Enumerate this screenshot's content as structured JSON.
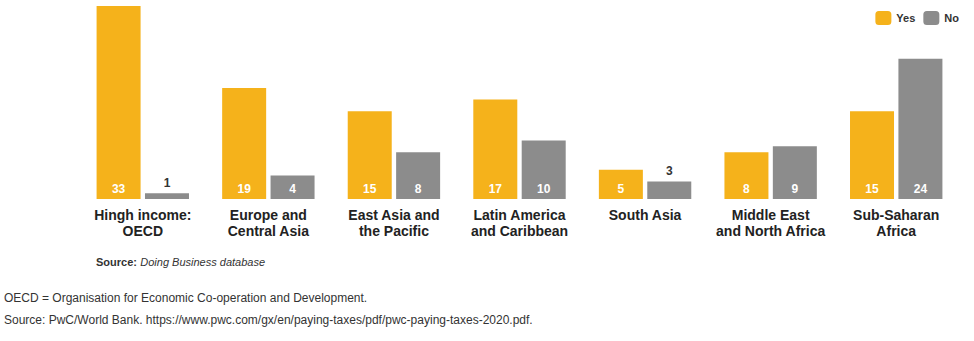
{
  "chart_data": {
    "type": "bar",
    "categories": [
      "Hingh income:\nOECD",
      "Europe and\nCentral Asia",
      "East Asia and\nthe Pacific",
      "Latin America\nand Caribbean",
      "South Asia",
      "Middle East\nand North Africa",
      "Sub-Saharan\nAfrica"
    ],
    "series": [
      {
        "name": "Yes",
        "color": "#f5b21b",
        "values": [
          33,
          19,
          15,
          17,
          5,
          8,
          15
        ]
      },
      {
        "name": "No",
        "color": "#8c8c8c",
        "values": [
          1,
          4,
          8,
          10,
          3,
          9,
          24
        ]
      }
    ],
    "ylim": [
      0,
      33
    ],
    "tick_labels": "x",
    "grid": false,
    "legend": "top-right",
    "data_labels": true,
    "source": {
      "label": "Source:",
      "text": "Doing Business database"
    },
    "notes": [
      "OECD = Organisation for Economic Co-operation and Development.",
      "Source: PwC/World Bank. https://www.pwc.com/gx/en/paying-taxes/pdf/pwc-paying-taxes-2020.pdf."
    ]
  }
}
